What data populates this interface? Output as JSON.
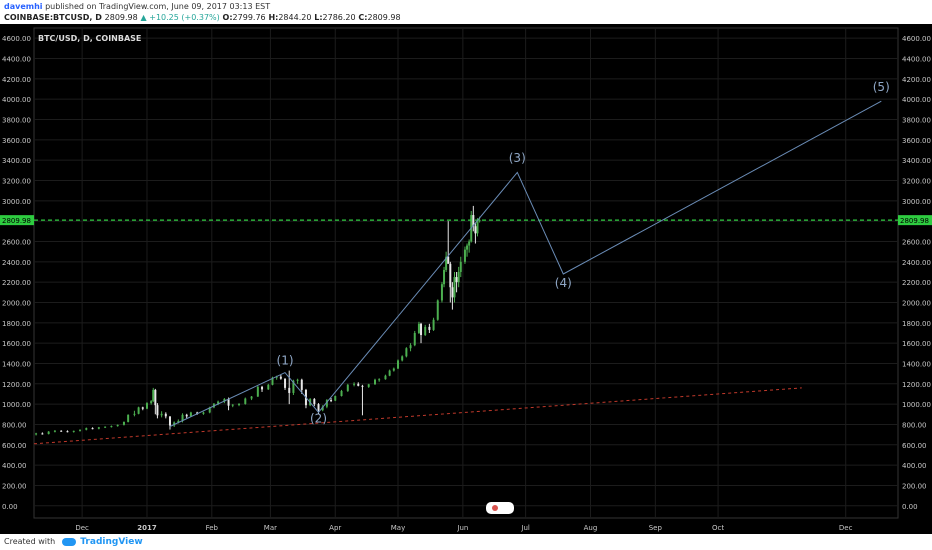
{
  "header": {
    "user": "davemhi",
    "published": "published on TradingView.com, June 09, 2017 03:13 EST",
    "symbol_line": "COINBASE:BTCUSD, D",
    "last": "2809.98",
    "change": "▲ +10.25 (+0.37%)",
    "o_label": "O:",
    "o": "2799.76",
    "h_label": "H:",
    "h": "2844.20",
    "l_label": "L:",
    "l": "2786.20",
    "c_label": "C:",
    "c": "2809.98"
  },
  "chart_title": "BTC/USD, D, COINBASE",
  "footer": {
    "created_with": "Created with",
    "brand": "TradingView"
  },
  "colors": {
    "background": "#000000",
    "grid": "#1c1c1c",
    "axis_text": "#c8c8c8",
    "up": "#4caf50",
    "down": "#e8e8e8",
    "price_line": "#2ecc40",
    "wave": "#6a8cb6",
    "wave_label": "#8fa7c6",
    "trend": "#c0392b"
  },
  "chart_data": {
    "type": "candlestick",
    "symbol": "BTC/USD",
    "interval": "D",
    "exchange": "COINBASE",
    "y_ticks": [
      0,
      200,
      400,
      600,
      800,
      1000,
      1200,
      1400,
      1600,
      1800,
      2000,
      2200,
      2400,
      2600,
      2800,
      3000,
      3200,
      3400,
      3600,
      3800,
      4000,
      4200,
      4400,
      4600
    ],
    "y_tick_labels": [
      "0.00",
      "200.00",
      "400.00",
      "600.00",
      "800.00",
      "1000.00",
      "1200.00",
      "1400.00",
      "1600.00",
      "1800.00",
      "2000.00",
      "2200.00",
      "2400.00",
      "2600.00",
      "2800.00",
      "3000.00",
      "3200.00",
      "3400.00",
      "3600.00",
      "3800.00",
      "4000.00",
      "4200.00",
      "4400.00",
      "4600.00"
    ],
    "ylim": [
      -120,
      4700
    ],
    "x_ticks": [
      {
        "label": "Dec",
        "date": "2016-12-01"
      },
      {
        "label": "2017",
        "date": "2017-01-01"
      },
      {
        "label": "Feb",
        "date": "2017-02-01"
      },
      {
        "label": "Mar",
        "date": "2017-03-01"
      },
      {
        "label": "Apr",
        "date": "2017-04-01"
      },
      {
        "label": "May",
        "date": "2017-05-01"
      },
      {
        "label": "Jun",
        "date": "2017-06-01"
      },
      {
        "label": "Jul",
        "date": "2017-07-01"
      },
      {
        "label": "Aug",
        "date": "2017-08-01"
      },
      {
        "label": "Sep",
        "date": "2017-09-01"
      },
      {
        "label": "Oct",
        "date": "2017-10-01"
      },
      {
        "label": "Dec",
        "date": "2017-12-01"
      }
    ],
    "xlim": [
      "2016-11-08",
      "2017-12-26"
    ],
    "candles_ohlc": [
      [
        "2016-11-09",
        704,
        718,
        692,
        712
      ],
      [
        "2016-11-12",
        712,
        722,
        700,
        706
      ],
      [
        "2016-11-15",
        706,
        735,
        702,
        730
      ],
      [
        "2016-11-18",
        730,
        745,
        722,
        738
      ],
      [
        "2016-11-21",
        738,
        744,
        728,
        734
      ],
      [
        "2016-11-24",
        734,
        742,
        722,
        728
      ],
      [
        "2016-11-27",
        728,
        740,
        720,
        737
      ],
      [
        "2016-11-30",
        737,
        752,
        730,
        748
      ],
      [
        "2016-12-03",
        748,
        770,
        742,
        764
      ],
      [
        "2016-12-06",
        764,
        772,
        752,
        758
      ],
      [
        "2016-12-09",
        758,
        776,
        752,
        772
      ],
      [
        "2016-12-12",
        772,
        782,
        765,
        778
      ],
      [
        "2016-12-15",
        778,
        790,
        770,
        784
      ],
      [
        "2016-12-18",
        784,
        800,
        778,
        796
      ],
      [
        "2016-12-21",
        796,
        830,
        790,
        825
      ],
      [
        "2016-12-23",
        825,
        900,
        820,
        895
      ],
      [
        "2016-12-26",
        895,
        935,
        880,
        905
      ],
      [
        "2016-12-28",
        905,
        975,
        900,
        968
      ],
      [
        "2016-12-30",
        968,
        975,
        940,
        955
      ],
      [
        "2017-01-01",
        955,
        1020,
        950,
        1010
      ],
      [
        "2017-01-03",
        1010,
        1040,
        995,
        1030
      ],
      [
        "2017-01-04",
        1030,
        1160,
        1020,
        1140
      ],
      [
        "2017-01-05",
        1140,
        1150,
        900,
        990
      ],
      [
        "2017-01-06",
        990,
        1010,
        860,
        890
      ],
      [
        "2017-01-08",
        890,
        930,
        870,
        905
      ],
      [
        "2017-01-10",
        905,
        920,
        860,
        880
      ],
      [
        "2017-01-12",
        880,
        880,
        750,
        790
      ],
      [
        "2017-01-14",
        790,
        830,
        775,
        820
      ],
      [
        "2017-01-16",
        820,
        850,
        810,
        835
      ],
      [
        "2017-01-18",
        835,
        910,
        820,
        895
      ],
      [
        "2017-01-20",
        895,
        905,
        860,
        880
      ],
      [
        "2017-01-22",
        880,
        925,
        875,
        918
      ],
      [
        "2017-01-25",
        918,
        925,
        895,
        905
      ],
      [
        "2017-01-28",
        905,
        925,
        895,
        918
      ],
      [
        "2017-01-31",
        918,
        975,
        910,
        968
      ],
      [
        "2017-02-02",
        968,
        1010,
        960,
        1005
      ],
      [
        "2017-02-04",
        1005,
        1035,
        990,
        1025
      ],
      [
        "2017-02-07",
        1025,
        1060,
        1010,
        1050
      ],
      [
        "2017-02-09",
        1050,
        1065,
        940,
        985
      ],
      [
        "2017-02-11",
        985,
        1000,
        970,
        995
      ],
      [
        "2017-02-14",
        995,
        1010,
        980,
        1002
      ],
      [
        "2017-02-17",
        1002,
        1065,
        995,
        1055
      ],
      [
        "2017-02-20",
        1055,
        1080,
        1040,
        1075
      ],
      [
        "2017-02-23",
        1075,
        1180,
        1070,
        1170
      ],
      [
        "2017-02-25",
        1170,
        1180,
        1120,
        1145
      ],
      [
        "2017-02-28",
        1145,
        1200,
        1140,
        1190
      ],
      [
        "2017-03-02",
        1190,
        1270,
        1185,
        1260
      ],
      [
        "2017-03-04",
        1260,
        1280,
        1240,
        1270
      ],
      [
        "2017-03-06",
        1270,
        1290,
        1240,
        1250
      ],
      [
        "2017-03-08",
        1250,
        1255,
        1140,
        1160
      ],
      [
        "2017-03-10",
        1160,
        1330,
        1000,
        1110
      ],
      [
        "2017-03-12",
        1110,
        1240,
        1090,
        1230
      ],
      [
        "2017-03-14",
        1230,
        1250,
        1200,
        1240
      ],
      [
        "2017-03-16",
        1240,
        1250,
        1100,
        1140
      ],
      [
        "2017-03-18",
        1140,
        1150,
        960,
        990
      ],
      [
        "2017-03-20",
        990,
        1060,
        980,
        1050
      ],
      [
        "2017-03-22",
        1050,
        1060,
        980,
        1000
      ],
      [
        "2017-03-24",
        1000,
        1010,
        900,
        940
      ],
      [
        "2017-03-26",
        940,
        990,
        930,
        975
      ],
      [
        "2017-03-28",
        975,
        1050,
        960,
        1040
      ],
      [
        "2017-03-30",
        1040,
        1060,
        1020,
        1035
      ],
      [
        "2017-04-01",
        1035,
        1085,
        1030,
        1080
      ],
      [
        "2017-04-04",
        1080,
        1140,
        1075,
        1130
      ],
      [
        "2017-04-07",
        1130,
        1200,
        1120,
        1190
      ],
      [
        "2017-04-10",
        1190,
        1215,
        1175,
        1200
      ],
      [
        "2017-04-12",
        1200,
        1215,
        1175,
        1180
      ],
      [
        "2017-04-14",
        1180,
        1190,
        890,
        1170
      ],
      [
        "2017-04-17",
        1170,
        1200,
        1160,
        1195
      ],
      [
        "2017-04-20",
        1195,
        1250,
        1190,
        1240
      ],
      [
        "2017-04-22",
        1240,
        1255,
        1220,
        1245
      ],
      [
        "2017-04-25",
        1245,
        1290,
        1240,
        1280
      ],
      [
        "2017-04-27",
        1280,
        1340,
        1275,
        1330
      ],
      [
        "2017-04-29",
        1330,
        1360,
        1320,
        1350
      ],
      [
        "2017-05-01",
        1350,
        1440,
        1345,
        1430
      ],
      [
        "2017-05-03",
        1430,
        1480,
        1420,
        1470
      ],
      [
        "2017-05-05",
        1470,
        1560,
        1460,
        1550
      ],
      [
        "2017-05-07",
        1550,
        1600,
        1520,
        1580
      ],
      [
        "2017-05-09",
        1580,
        1720,
        1570,
        1700
      ],
      [
        "2017-05-11",
        1700,
        1810,
        1690,
        1790
      ],
      [
        "2017-05-12",
        1790,
        1800,
        1600,
        1680
      ],
      [
        "2017-05-14",
        1680,
        1780,
        1670,
        1760
      ],
      [
        "2017-05-16",
        1760,
        1790,
        1700,
        1730
      ],
      [
        "2017-05-18",
        1730,
        1850,
        1720,
        1830
      ],
      [
        "2017-05-20",
        1830,
        2030,
        1820,
        2020
      ],
      [
        "2017-05-22",
        2020,
        2200,
        2000,
        2180
      ],
      [
        "2017-05-23",
        2180,
        2350,
        2150,
        2320
      ],
      [
        "2017-05-24",
        2320,
        2500,
        2300,
        2450
      ],
      [
        "2017-05-25",
        2450,
        2800,
        2400,
        2380
      ],
      [
        "2017-05-26",
        2380,
        2400,
        2000,
        2150
      ],
      [
        "2017-05-27",
        2150,
        2200,
        1930,
        2050
      ],
      [
        "2017-05-28",
        2050,
        2300,
        2000,
        2250
      ],
      [
        "2017-05-29",
        2250,
        2300,
        2100,
        2200
      ],
      [
        "2017-05-30",
        2200,
        2350,
        2150,
        2300
      ],
      [
        "2017-05-31",
        2300,
        2450,
        2250,
        2400
      ],
      [
        "2017-06-02",
        2400,
        2550,
        2380,
        2520
      ],
      [
        "2017-06-03",
        2520,
        2580,
        2450,
        2560
      ],
      [
        "2017-06-04",
        2560,
        2620,
        2490,
        2600
      ],
      [
        "2017-06-05",
        2600,
        2900,
        2590,
        2860
      ],
      [
        "2017-06-06",
        2860,
        2950,
        2700,
        2750
      ],
      [
        "2017-06-07",
        2750,
        2780,
        2580,
        2680
      ],
      [
        "2017-06-08",
        2680,
        2830,
        2650,
        2799.76
      ],
      [
        "2017-06-09",
        2799.76,
        2844.2,
        2786.2,
        2809.98
      ]
    ],
    "last_price": 2809.98,
    "last_price_label": "2809.98",
    "wave_path": [
      {
        "date": "2017-01-12",
        "price": 780
      },
      {
        "date": "2017-03-08",
        "price": 1310
      },
      {
        "date": "2017-03-24",
        "price": 920
      },
      {
        "date": "2017-06-27",
        "price": 3280
      },
      {
        "date": "2017-07-19",
        "price": 2280
      },
      {
        "date": "2017-12-18",
        "price": 3980
      }
    ],
    "wave_labels": [
      {
        "text": "(1)",
        "date": "2017-03-08",
        "price": 1390
      },
      {
        "text": "(2)",
        "date": "2017-03-24",
        "price": 820
      },
      {
        "text": "(3)",
        "date": "2017-06-27",
        "price": 3380
      },
      {
        "text": "(4)",
        "date": "2017-07-19",
        "price": 2150
      },
      {
        "text": "(5)",
        "date": "2017-12-18",
        "price": 4080
      }
    ],
    "trendline": [
      {
        "date": "2016-11-08",
        "price": 610
      },
      {
        "date": "2017-11-10",
        "price": 1160
      }
    ],
    "price_line_style": "dashed",
    "trendline_style": "dashed"
  }
}
